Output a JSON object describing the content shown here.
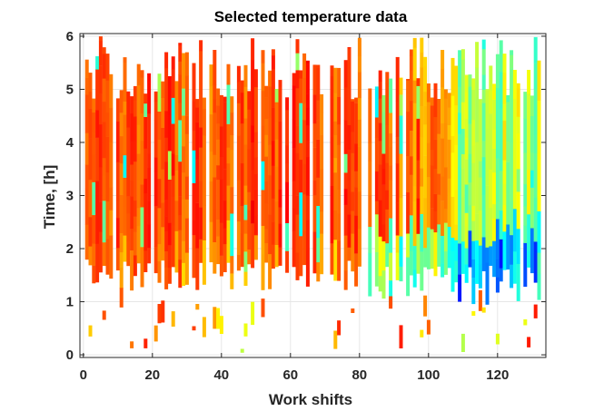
{
  "chart_data": {
    "type": "heatmap",
    "title": "Selected temperature data",
    "xlabel": "Work shifts",
    "ylabel": "Time, [h]",
    "xlim": [
      -1,
      134
    ],
    "ylim": [
      -0.05,
      6.05
    ],
    "xticks": [
      0,
      20,
      40,
      60,
      80,
      100,
      120
    ],
    "yticks": [
      0,
      1,
      2,
      3,
      4,
      5,
      6
    ],
    "grid": true,
    "colormap": "jet",
    "background": "#ffffff",
    "gridColor": "#e6e6e6",
    "axisColor": "#262626",
    "regimes": [
      {
        "x": [
          1,
          82
        ],
        "description": "mostly hot (orange/red/yellow), data bulk from ~1.5 h to ~6 h"
      },
      {
        "x": [
          83,
          106
        ],
        "description": "mixed hot with cyan/blue near 1-2 h"
      },
      {
        "x": [
          107,
          132
        ],
        "description": "cooler (yellow/green/cyan/blue)"
      }
    ]
  }
}
